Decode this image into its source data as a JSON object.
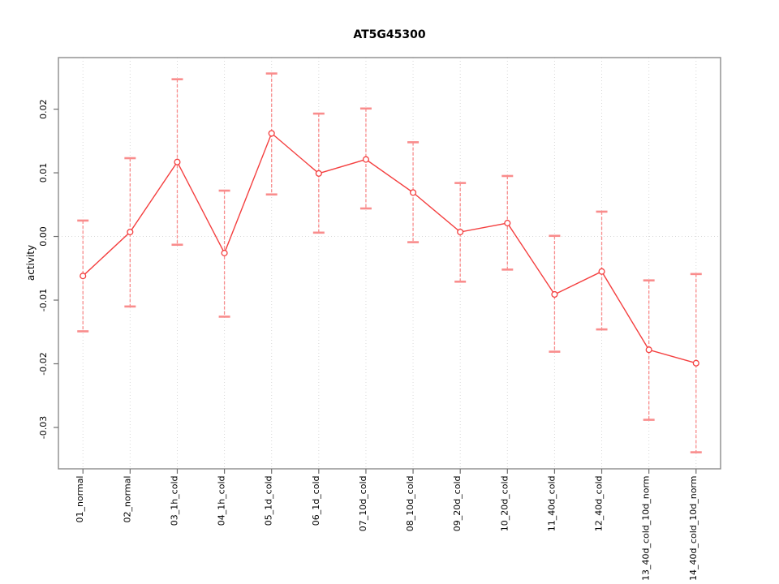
{
  "chart_data": {
    "type": "line",
    "title": "AT5G45300",
    "xlabel": "",
    "ylabel": "activity",
    "categories": [
      "01_normal",
      "02_normal",
      "03_1h_cold",
      "04_1h_cold",
      "05_1d_cold",
      "06_1d_cold",
      "07_10d_cold",
      "08_10d_cold",
      "09_20d_cold",
      "10_20d_cold",
      "11_40d_cold",
      "12_40d_cold",
      "13_40d_cold_10d_norm",
      "14_40d_cold_10d_norm"
    ],
    "series": [
      {
        "name": "activity",
        "marker": "open-circle",
        "values": [
          -0.0062,
          0.0007,
          0.0117,
          -0.0026,
          0.0162,
          0.0099,
          0.0121,
          0.0069,
          0.0007,
          0.0021,
          -0.0091,
          -0.0055,
          -0.0178,
          -0.0199
        ],
        "error_low": [
          -0.0149,
          -0.011,
          -0.0013,
          -0.0126,
          0.0066,
          0.0006,
          0.0044,
          -0.0009,
          -0.0071,
          -0.0052,
          -0.0181,
          -0.0146,
          -0.0288,
          -0.0339
        ],
        "error_high": [
          0.0025,
          0.0123,
          0.0247,
          0.0072,
          0.0256,
          0.0193,
          0.0201,
          0.0148,
          0.0084,
          0.0095,
          0.0001,
          0.0039,
          -0.0069,
          -0.0059
        ]
      }
    ],
    "ylim": [
      -0.0365,
      0.0281
    ],
    "yticks": [
      {
        "value": 0.02,
        "label": "0.02"
      },
      {
        "value": 0.01,
        "label": "0.01"
      },
      {
        "value": 0.0,
        "label": "0.00"
      },
      {
        "value": -0.01,
        "label": "-0.01"
      },
      {
        "value": -0.02,
        "label": "-0.02"
      },
      {
        "value": -0.03,
        "label": "-0.03"
      }
    ],
    "grid": {
      "vertical_per_category": true,
      "horizontal_zero_line": true,
      "style": "dotted"
    },
    "legend": null,
    "colors": {
      "line": "#f43f3f",
      "marker": "#f43f3f",
      "error_bar": "#f98c8c",
      "grid": "#d8d8d8",
      "box": "#8c8c8c",
      "tick": "#6f6f6f",
      "text": "#000000",
      "background": "#ffffff"
    }
  }
}
